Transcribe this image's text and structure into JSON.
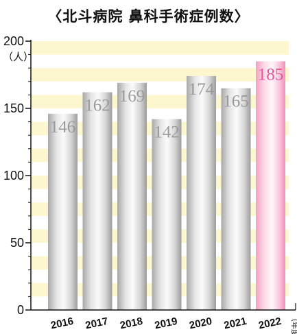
{
  "chart_data": {
    "type": "bar",
    "title": "〈北斗病院 鼻科手術症例数〉",
    "ylabel": "（人）",
    "xlabel": "（年度）",
    "categories": [
      "2016",
      "2017",
      "2018",
      "2019",
      "2020",
      "2021",
      "2022"
    ],
    "values": [
      146,
      162,
      169,
      142,
      174,
      165,
      185
    ],
    "value_labels": [
      "146",
      "162",
      "169",
      "142",
      "174",
      "165",
      "185"
    ],
    "ylim": [
      0,
      200
    ],
    "yticks": [
      0,
      50,
      100,
      150,
      200
    ],
    "ytick_labels": [
      "0",
      "50",
      "100",
      "150",
      "200"
    ],
    "highlight_index": 6,
    "colors": {
      "bar": "#d9d9d9",
      "bar_highlight": "#f5a9c8",
      "label": "#9a9a9a",
      "label_highlight": "#e8559a",
      "band": "#fdf7cf"
    },
    "grid": true,
    "legend": "none"
  }
}
